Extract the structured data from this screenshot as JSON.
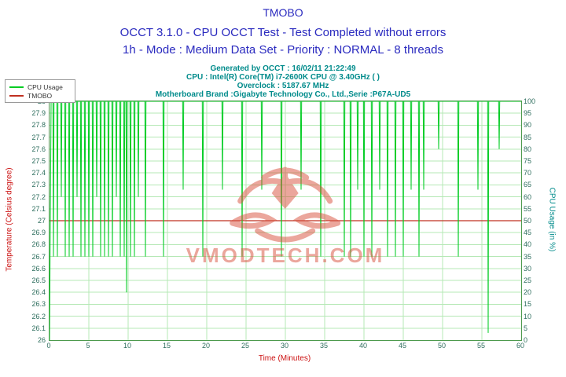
{
  "header": {
    "title": "TMOBO",
    "subtitle1": "OCCT 3.1.0 - CPU OCCT Test - Test Completed without errors",
    "subtitle2": "1h - Mode : Medium Data Set - Priority : NORMAL - 8 threads",
    "generated": "Generated by OCCT : 16/02/11 21:22:49",
    "cpu": "CPU : Intel(R) Core(TM) i7-2600K CPU @ 3.40GHz (  )",
    "overclock": "Overclock : 5187.67 MHz",
    "motherboard": "Motherboard Brand :Gigabyte Technology Co., Ltd.,Serie :P67A-UD5"
  },
  "legend": [
    {
      "label": "CPU Usage",
      "color": "#00cc22"
    },
    {
      "label": "TMOBO",
      "color": "#c03020"
    }
  ],
  "watermark": {
    "text": "VMODTECH.COM"
  },
  "colors": {
    "title": "#2a2abf",
    "info": "#008b8b",
    "axis_red": "#cc1111",
    "axis_teal": "#008b8b",
    "cpu_line": "#00cc22",
    "temp_line": "#c03020",
    "grid": "#b5e8b5",
    "plot_border": "#4d9a4d",
    "tick_text": "#2e6e5e",
    "watermark": "#d8503c"
  },
  "chart_data": {
    "type": "line",
    "title": "TMOBO",
    "xlabel": "Time (Minutes)",
    "ylabel_left": "Temperature (Celsius degree)",
    "ylabel_right": "CPU Usage (in %)",
    "xlim": [
      0,
      60
    ],
    "ylim_left": [
      26,
      28
    ],
    "ylim_right": [
      0,
      100
    ],
    "grid": true,
    "legend_position": "top-left",
    "x_ticks": [
      0,
      5,
      10,
      15,
      20,
      25,
      30,
      35,
      40,
      45,
      50,
      55,
      60
    ],
    "left_ticks": [
      26,
      26.1,
      26.2,
      26.3,
      26.4,
      26.5,
      26.6,
      26.7,
      26.8,
      26.9,
      27,
      27.1,
      27.2,
      27.3,
      27.4,
      27.5,
      27.6,
      27.7,
      27.8,
      27.9,
      28
    ],
    "right_ticks": [
      0,
      5,
      10,
      15,
      20,
      25,
      30,
      35,
      40,
      45,
      50,
      55,
      60,
      65,
      70,
      75,
      80,
      85,
      90,
      95,
      100
    ],
    "series": [
      {
        "name": "CPU Usage",
        "axis": "right",
        "color": "#00cc22",
        "baseline": 100,
        "start": {
          "x": 0,
          "y": 0
        },
        "dips": [
          [
            0.5,
            35
          ],
          [
            1.0,
            35
          ],
          [
            1.5,
            60
          ],
          [
            2.0,
            35
          ],
          [
            2.5,
            35
          ],
          [
            3.0,
            35
          ],
          [
            3.5,
            60
          ],
          [
            4.0,
            35
          ],
          [
            4.5,
            35
          ],
          [
            5.0,
            35
          ],
          [
            5.5,
            35
          ],
          [
            6.0,
            60
          ],
          [
            6.5,
            35
          ],
          [
            7.0,
            35
          ],
          [
            7.5,
            35
          ],
          [
            8.0,
            35
          ],
          [
            8.5,
            60
          ],
          [
            9.0,
            35
          ],
          [
            9.5,
            35
          ],
          [
            9.8,
            20
          ],
          [
            10.3,
            35
          ],
          [
            10.8,
            35
          ],
          [
            11.3,
            60
          ],
          [
            12.2,
            35
          ],
          [
            14.5,
            35
          ],
          [
            17.0,
            63
          ],
          [
            19.5,
            35
          ],
          [
            22.0,
            63
          ],
          [
            24.5,
            35
          ],
          [
            27.0,
            63
          ],
          [
            29.5,
            35
          ],
          [
            32.0,
            63
          ],
          [
            34.5,
            35
          ],
          [
            37.5,
            35
          ],
          [
            38.3,
            35
          ],
          [
            39.2,
            63
          ],
          [
            40.0,
            35
          ],
          [
            41.0,
            35
          ],
          [
            42.0,
            63
          ],
          [
            43.0,
            35
          ],
          [
            44.0,
            35
          ],
          [
            45.0,
            35
          ],
          [
            46.0,
            63
          ],
          [
            47.0,
            35
          ],
          [
            47.6,
            63
          ],
          [
            49.5,
            80
          ],
          [
            52.0,
            35
          ],
          [
            54.5,
            63
          ],
          [
            55.8,
            3
          ],
          [
            57.2,
            80
          ]
        ]
      },
      {
        "name": "TMOBO",
        "axis": "left",
        "color": "#c03020",
        "points": [
          {
            "x": 0,
            "y": 27
          },
          {
            "x": 60,
            "y": 27
          }
        ]
      }
    ]
  }
}
